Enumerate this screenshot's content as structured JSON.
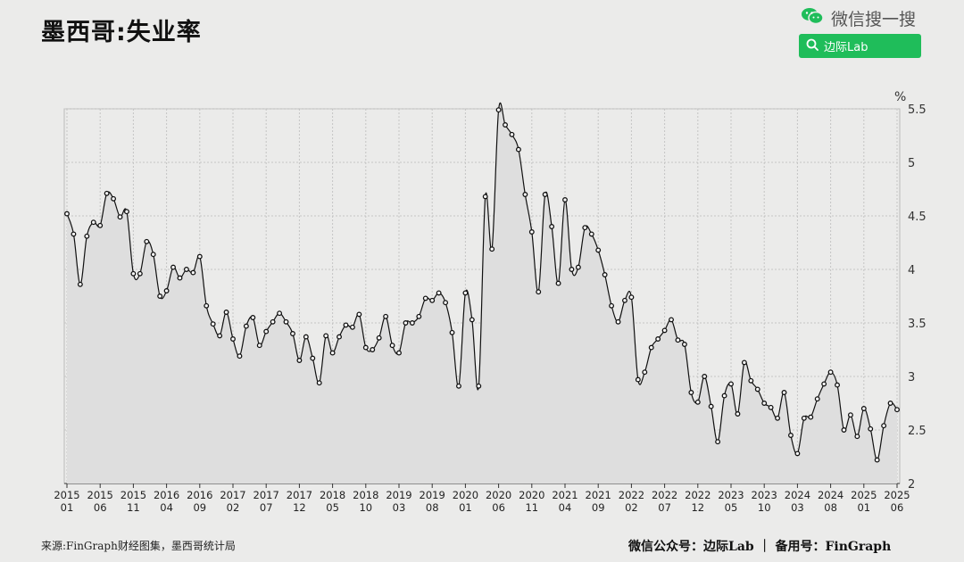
{
  "title": "墨西哥:失业率",
  "brand": {
    "search_hint": "微信搜一搜",
    "search_label": "边际Lab",
    "brand_color": "#1fbd5a"
  },
  "footer": {
    "source": "来源:FinGraph财经图集，墨西哥统计局",
    "credit": "微信公众号：边际Lab ｜ 备用号：FinGraph"
  },
  "chart_data": {
    "type": "line",
    "title": "墨西哥:失业率",
    "unit": "%",
    "xlabel": "",
    "ylabel": "",
    "ylim": [
      2,
      5.5
    ],
    "yticks": [
      "2",
      "2.5",
      "3",
      "3.5",
      "4",
      "4.5",
      "5",
      "5.5"
    ],
    "grid": true,
    "x_start": "2015-01",
    "x_end": "2025-06",
    "xtick_labels": [
      [
        "2015",
        "01"
      ],
      [
        "2015",
        "06"
      ],
      [
        "2015",
        "11"
      ],
      [
        "2016",
        "04"
      ],
      [
        "2016",
        "09"
      ],
      [
        "2017",
        "02"
      ],
      [
        "2017",
        "07"
      ],
      [
        "2017",
        "12"
      ],
      [
        "2018",
        "05"
      ],
      [
        "2018",
        "10"
      ],
      [
        "2019",
        "03"
      ],
      [
        "2019",
        "08"
      ],
      [
        "2020",
        "01"
      ],
      [
        "2020",
        "06"
      ],
      [
        "2020",
        "11"
      ],
      [
        "2021",
        "04"
      ],
      [
        "2021",
        "09"
      ],
      [
        "2022",
        "02"
      ],
      [
        "2022",
        "07"
      ],
      [
        "2022",
        "12"
      ],
      [
        "2023",
        "05"
      ],
      [
        "2023",
        "10"
      ],
      [
        "2024",
        "03"
      ],
      [
        "2024",
        "08"
      ],
      [
        "2025",
        "01"
      ],
      [
        "2025",
        "06"
      ]
    ],
    "series": [
      {
        "color": "#111111",
        "fill": "#dedede",
        "values": [
          4.52,
          4.33,
          3.86,
          4.31,
          4.44,
          4.41,
          4.71,
          4.66,
          4.49,
          4.54,
          3.96,
          3.96,
          4.26,
          4.14,
          3.75,
          3.8,
          4.02,
          3.92,
          4.0,
          3.97,
          4.12,
          3.66,
          3.49,
          3.38,
          3.6,
          3.35,
          3.19,
          3.47,
          3.55,
          3.29,
          3.42,
          3.51,
          3.59,
          3.51,
          3.4,
          3.15,
          3.37,
          3.17,
          2.94,
          3.38,
          3.22,
          3.37,
          3.48,
          3.46,
          3.58,
          3.27,
          3.25,
          3.36,
          3.56,
          3.29,
          3.22,
          3.5,
          3.5,
          3.56,
          3.73,
          3.71,
          3.78,
          3.69,
          3.41,
          2.91,
          3.78,
          3.53,
          2.91,
          4.68,
          4.19,
          5.49,
          5.35,
          5.26,
          5.12,
          4.7,
          4.35,
          3.79,
          4.7,
          4.4,
          3.87,
          4.65,
          4.0,
          4.02,
          4.39,
          4.33,
          4.18,
          3.95,
          3.66,
          3.51,
          3.71,
          3.74,
          2.97,
          3.04,
          3.27,
          3.35,
          3.43,
          3.53,
          3.34,
          3.3,
          2.85,
          2.76,
          3.0,
          2.72,
          2.39,
          2.82,
          2.93,
          2.65,
          3.13,
          2.96,
          2.88,
          2.75,
          2.71,
          2.61,
          2.85,
          2.45,
          2.28,
          2.61,
          2.62,
          2.79,
          2.93,
          3.04,
          2.92,
          2.5,
          2.64,
          2.44,
          2.7,
          2.51,
          2.22,
          2.54,
          2.75,
          2.69
        ]
      }
    ]
  }
}
